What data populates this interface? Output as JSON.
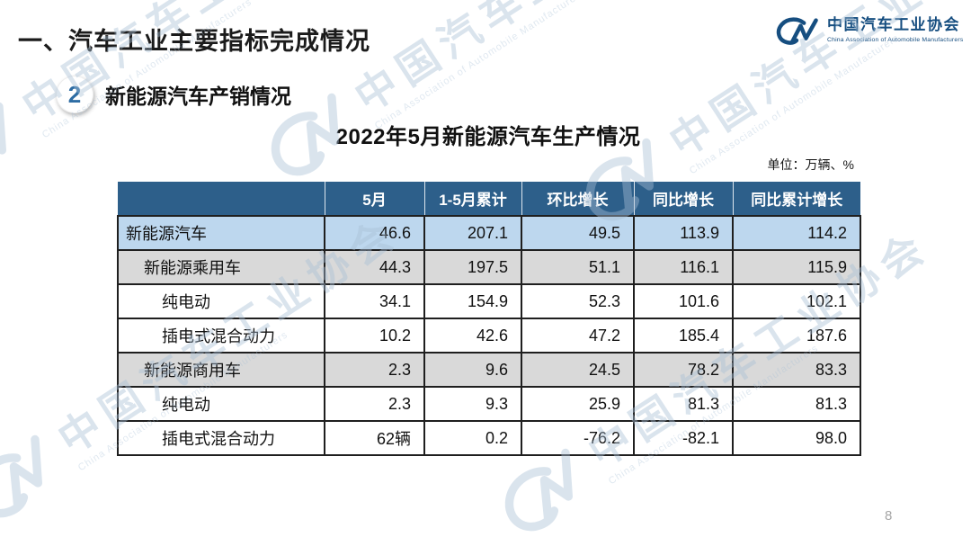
{
  "slide": {
    "title": "一、汽车工业主要指标完成情况",
    "section": {
      "badge": "2",
      "title": "新能源汽车产销情况"
    },
    "table_title": "2022年5月新能源汽车生产情况",
    "unit_note": "单位：万辆、%",
    "page_number": "8"
  },
  "logo": {
    "org_cn": "中国汽车工业协会",
    "org_en": "China Association of Automobile Manufacturers"
  },
  "watermark": {
    "text_cn": "中国汽车工业协会",
    "text_en": "China Association of Automobile Manufacturers"
  },
  "colors": {
    "header_bg": "#2d5f8a",
    "row_blue": "#bdd7ee",
    "row_gray": "#d9d9d9",
    "logo_blue": "#164e80",
    "badge_blue": "#2e6da4",
    "watermark_blue": "#a9c0d6"
  },
  "chart_data": {
    "type": "table",
    "title": "2022年5月新能源汽车生产情况",
    "unit": "万辆、%",
    "columns": [
      "",
      "5月",
      "1-5月累计",
      "环比增长",
      "同比增长",
      "同比累计增长"
    ],
    "rows": [
      {
        "label": "新能源汽车",
        "indent": 0,
        "style": "blue",
        "values": [
          "46.6",
          "207.1",
          "49.5",
          "113.9",
          "114.2"
        ]
      },
      {
        "label": "新能源乘用车",
        "indent": 1,
        "style": "gray",
        "values": [
          "44.3",
          "197.5",
          "51.1",
          "116.1",
          "115.9"
        ]
      },
      {
        "label": "纯电动",
        "indent": 2,
        "style": "white",
        "values": [
          "34.1",
          "154.9",
          "52.3",
          "101.6",
          "102.1"
        ]
      },
      {
        "label": "插电式混合动力",
        "indent": 2,
        "style": "white",
        "values": [
          "10.2",
          "42.6",
          "47.2",
          "185.4",
          "187.6"
        ]
      },
      {
        "label": "新能源商用车",
        "indent": 1,
        "style": "gray",
        "values": [
          "2.3",
          "9.6",
          "24.5",
          "78.2",
          "83.3"
        ]
      },
      {
        "label": "纯电动",
        "indent": 2,
        "style": "white",
        "values": [
          "2.3",
          "9.3",
          "25.9",
          "81.3",
          "81.3"
        ]
      },
      {
        "label": "插电式混合动力",
        "indent": 2,
        "style": "white",
        "values": [
          "62辆",
          "0.2",
          "-76.2",
          "-82.1",
          "98.0"
        ]
      }
    ]
  }
}
